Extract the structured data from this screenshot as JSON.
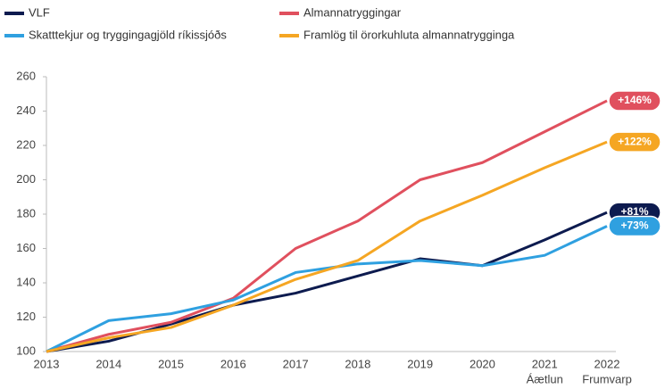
{
  "chart_data": {
    "type": "line",
    "categories": [
      "2013",
      "2014",
      "2015",
      "2016",
      "2017",
      "2018",
      "2019",
      "2020",
      "2021",
      "2022"
    ],
    "category_notes": [
      null,
      null,
      null,
      null,
      null,
      null,
      null,
      null,
      "Áætlun",
      "Frumvarp"
    ],
    "legend": "top",
    "ylim": [
      100,
      260
    ],
    "yticks": [
      100,
      120,
      140,
      160,
      180,
      200,
      220,
      240,
      260
    ],
    "series": [
      {
        "name": "VLF",
        "color": "#0d1b4f",
        "values": [
          100,
          106,
          116,
          127,
          134,
          144,
          154,
          150,
          165,
          181
        ],
        "end_label": "+81%"
      },
      {
        "name": "Almannatryggingar",
        "color": "#e0505e",
        "values": [
          100,
          110,
          117,
          131,
          160,
          176,
          200,
          210,
          228,
          246
        ],
        "end_label": "+146%"
      },
      {
        "name": "Skatttekjur og tryggingagjöld ríkissjóðs",
        "color": "#2fa0e0",
        "values": [
          100,
          118,
          122,
          130,
          146,
          151,
          153,
          150,
          156,
          173
        ],
        "end_label": "+73%"
      },
      {
        "name": "Framlög til örorkuhluta almannatrygginga",
        "color": "#f5a623",
        "values": [
          100,
          108,
          114,
          127,
          142,
          153,
          176,
          191,
          207,
          222
        ],
        "end_label": "+122%"
      }
    ]
  }
}
